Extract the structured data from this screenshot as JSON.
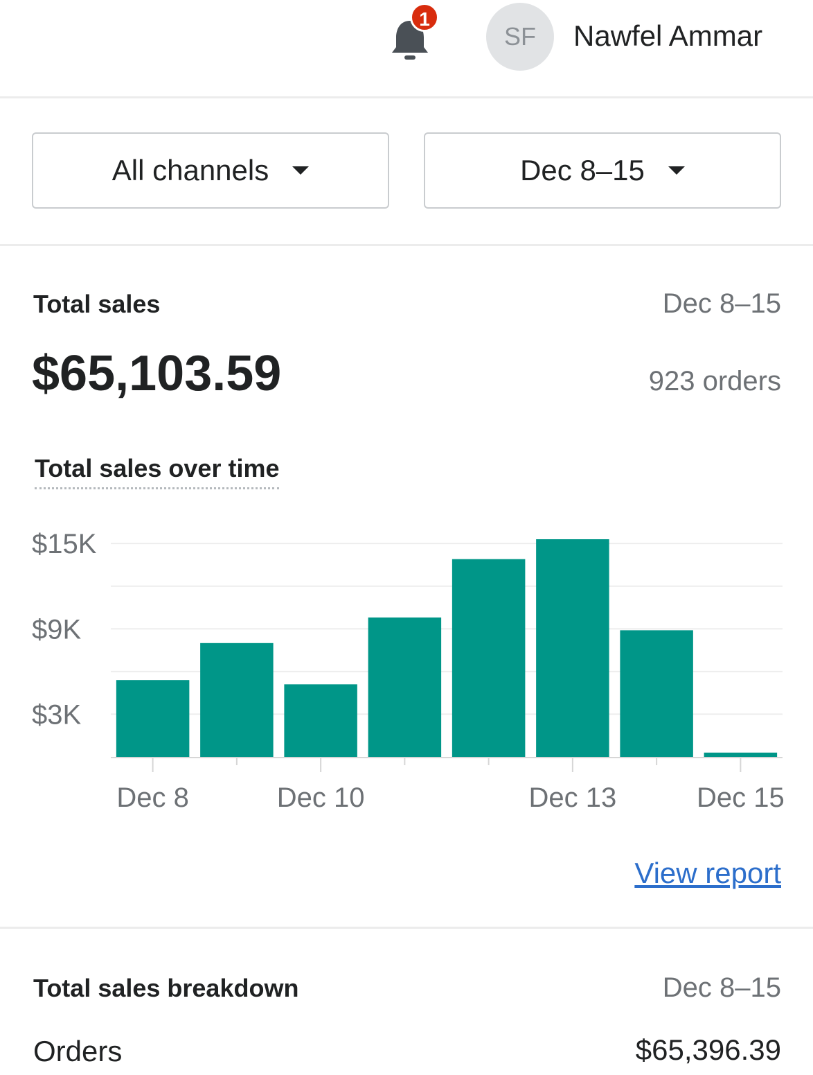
{
  "header": {
    "notification_icon": "bell-icon",
    "notification_count": "1",
    "avatar_initials": "SF",
    "user_name": "Nawfel Ammar"
  },
  "filters": {
    "channel": "All channels",
    "date_range": "Dec 8–15"
  },
  "total_sales": {
    "title": "Total sales",
    "date_range": "Dec 8–15",
    "amount": "$65,103.59",
    "orders": "923 orders",
    "chart_title": "Total sales over time",
    "view_report": "View report"
  },
  "chart_data": {
    "type": "bar",
    "categories": [
      "Dec 8",
      "Dec 9",
      "Dec 10",
      "Dec 11",
      "Dec 12",
      "Dec 13",
      "Dec 14",
      "Dec 15"
    ],
    "values": [
      5400,
      8000,
      5100,
      9800,
      13900,
      15300,
      8900,
      300
    ],
    "ylim": [
      0,
      15300
    ],
    "y_ticks": [
      3000,
      9000,
      15000
    ],
    "y_tick_labels": [
      "$3K",
      "$9K",
      "$15K"
    ],
    "x_tick_labels": [
      "Dec 8",
      "Dec 10",
      "Dec 13",
      "Dec 15"
    ],
    "x_tick_indices": [
      0,
      2,
      5,
      7
    ],
    "bar_color": "#009688",
    "grid": true
  },
  "breakdown": {
    "title": "Total sales breakdown",
    "date_range": "Dec 8–15",
    "rows": [
      {
        "label": "Orders",
        "value": "$65,396.39"
      }
    ]
  }
}
